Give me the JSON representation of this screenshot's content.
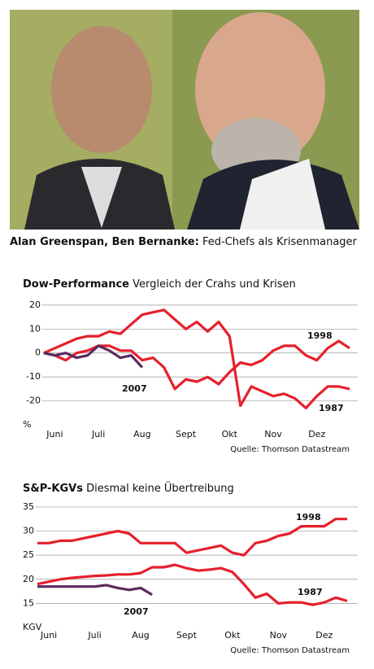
{
  "caption": {
    "names": "Alan Greenspan, Ben Bernanke:",
    "text": "Fed-Chefs als Krisenmanager"
  },
  "chart_data": [
    {
      "type": "line",
      "title": "Dow-Performance",
      "subtitle": "Vergleich der Crahs und Krisen",
      "y_label": "%",
      "source": "Quelle: Thomson Datastream",
      "categories": [
        null,
        "Juni",
        null,
        null,
        null,
        "Juli",
        null,
        null,
        null,
        "Aug",
        null,
        null,
        null,
        "Sept",
        null,
        null,
        null,
        "Okt",
        null,
        null,
        null,
        "Nov",
        null,
        null,
        null,
        "Dez",
        null,
        null,
        null
      ],
      "ylim": [
        -30,
        22
      ],
      "yticks": [
        20,
        10,
        0,
        -10,
        -20
      ],
      "grid": true,
      "series": [
        {
          "name": "1998",
          "color": "#e5202c",
          "values": [
            0,
            -1,
            -3,
            0,
            1,
            3,
            3,
            1,
            1,
            -3,
            -2,
            -6,
            -15,
            -11,
            -12,
            -10,
            -13,
            -8,
            -4,
            -5,
            -3,
            1,
            3,
            3,
            -1,
            -3,
            2,
            5,
            2
          ]
        },
        {
          "name": "1987",
          "color": "#e5202c",
          "values": [
            0,
            2,
            4,
            6,
            7,
            7,
            9,
            8,
            12,
            16,
            17,
            18,
            14,
            10,
            13,
            9,
            13,
            7,
            -22,
            -14,
            -16,
            -18,
            -17,
            -19,
            -23,
            -18,
            -14,
            -14,
            -15
          ]
        },
        {
          "name": "2007",
          "color": "#5b2a5e",
          "values": [
            0,
            -1,
            0,
            -2,
            -1,
            3,
            1,
            -2,
            -1,
            -6,
            null,
            null,
            null,
            null,
            null,
            null,
            null,
            null,
            null,
            null,
            null,
            null,
            null,
            null,
            null,
            null,
            null,
            null,
            null
          ]
        }
      ]
    },
    {
      "type": "line",
      "title": "S&P-KGVs",
      "subtitle": "Diesmal keine Übertreibung",
      "y_label": "KGV",
      "source": "Quelle: Thomson Datastream",
      "categories": [
        null,
        "Juni",
        null,
        null,
        null,
        "Juli",
        null,
        null,
        null,
        "Aug",
        null,
        null,
        null,
        "Sept",
        null,
        null,
        null,
        "Okt",
        null,
        null,
        null,
        "Nov",
        null,
        null,
        null,
        "Dez",
        null,
        null
      ],
      "ylim": [
        10,
        36
      ],
      "yticks": [
        35,
        30,
        25,
        20,
        15
      ],
      "grid": true,
      "series": [
        {
          "name": "1998",
          "color": "#e5202c",
          "values": [
            27.5,
            27.5,
            28,
            28,
            28.5,
            29,
            29.5,
            30,
            29.5,
            27.5,
            27.5,
            27.5,
            27.5,
            25.5,
            26,
            26.5,
            27,
            25.5,
            25,
            27.5,
            28,
            29,
            29.5,
            31,
            31,
            31,
            32.5,
            32.5
          ]
        },
        {
          "name": "1987",
          "color": "#e5202c",
          "values": [
            19,
            19.5,
            20,
            20.3,
            20.5,
            20.7,
            20.8,
            21,
            21,
            21.3,
            22.5,
            22.5,
            23,
            22.3,
            21.8,
            22,
            22.3,
            21.5,
            19,
            16.2,
            17,
            15,
            15.2,
            15.2,
            14.7,
            15.2,
            16.2,
            15.5
          ]
        },
        {
          "name": "2007",
          "color": "#5b2a5e",
          "values": [
            18.5,
            18.5,
            18.5,
            18.5,
            18.5,
            18.5,
            18.8,
            18.2,
            17.8,
            18.2,
            16.8,
            null,
            null,
            null,
            null,
            null,
            null,
            null,
            null,
            null,
            null,
            null,
            null,
            null,
            null,
            null,
            null,
            null
          ]
        }
      ]
    }
  ]
}
